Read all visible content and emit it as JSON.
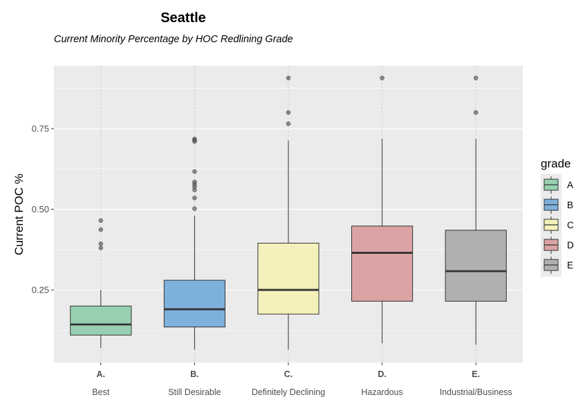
{
  "chart_data": {
    "type": "boxplot",
    "title": "Seattle",
    "subtitle": "Current Minority Percentage by HOC Redlining Grade",
    "xlabel": "",
    "ylabel": "Current POC %",
    "ylim": [
      0.025,
      0.945
    ],
    "y_ticks": [
      0.25,
      0.5,
      0.75
    ],
    "y_tick_labels": [
      "0.25",
      "0.50",
      "0.75"
    ],
    "grid": true,
    "legend_title": "grade",
    "legend_position": "right",
    "categories": [
      "A.",
      "B.",
      "C.",
      "D.",
      "E."
    ],
    "category_descriptions": [
      "Best",
      "Still Desirable",
      "Definitely Declining",
      "Hazardous",
      "Industrial/Business"
    ],
    "legend_labels": [
      "A",
      "B",
      "C",
      "D",
      "E"
    ],
    "colors": [
      "#97d0b0",
      "#7eb0dc",
      "#f4f0ba",
      "#dba3a3",
      "#b0b0b0"
    ],
    "boxes": [
      {
        "grade": "A",
        "whisker_low": 0.07,
        "q1": 0.11,
        "median": 0.143,
        "q3": 0.2,
        "whisker_high": 0.25,
        "outliers": [
          0.38,
          0.393,
          0.437,
          0.465
        ]
      },
      {
        "grade": "B",
        "whisker_low": 0.065,
        "q1": 0.135,
        "median": 0.19,
        "q3": 0.28,
        "whisker_high": 0.48,
        "outliers": [
          0.502,
          0.535,
          0.56,
          0.57,
          0.578,
          0.585,
          0.617,
          0.71,
          0.715,
          0.718
        ]
      },
      {
        "grade": "C",
        "whisker_low": 0.065,
        "q1": 0.175,
        "median": 0.25,
        "q3": 0.395,
        "whisker_high": 0.713,
        "outliers": [
          0.765,
          0.8,
          0.907
        ]
      },
      {
        "grade": "D",
        "whisker_low": 0.085,
        "q1": 0.215,
        "median": 0.365,
        "q3": 0.448,
        "whisker_high": 0.718,
        "outliers": [
          0.907
        ]
      },
      {
        "grade": "E",
        "whisker_low": 0.08,
        "q1": 0.215,
        "median": 0.308,
        "q3": 0.435,
        "whisker_high": 0.718,
        "outliers": [
          0.8,
          0.907
        ]
      }
    ]
  }
}
